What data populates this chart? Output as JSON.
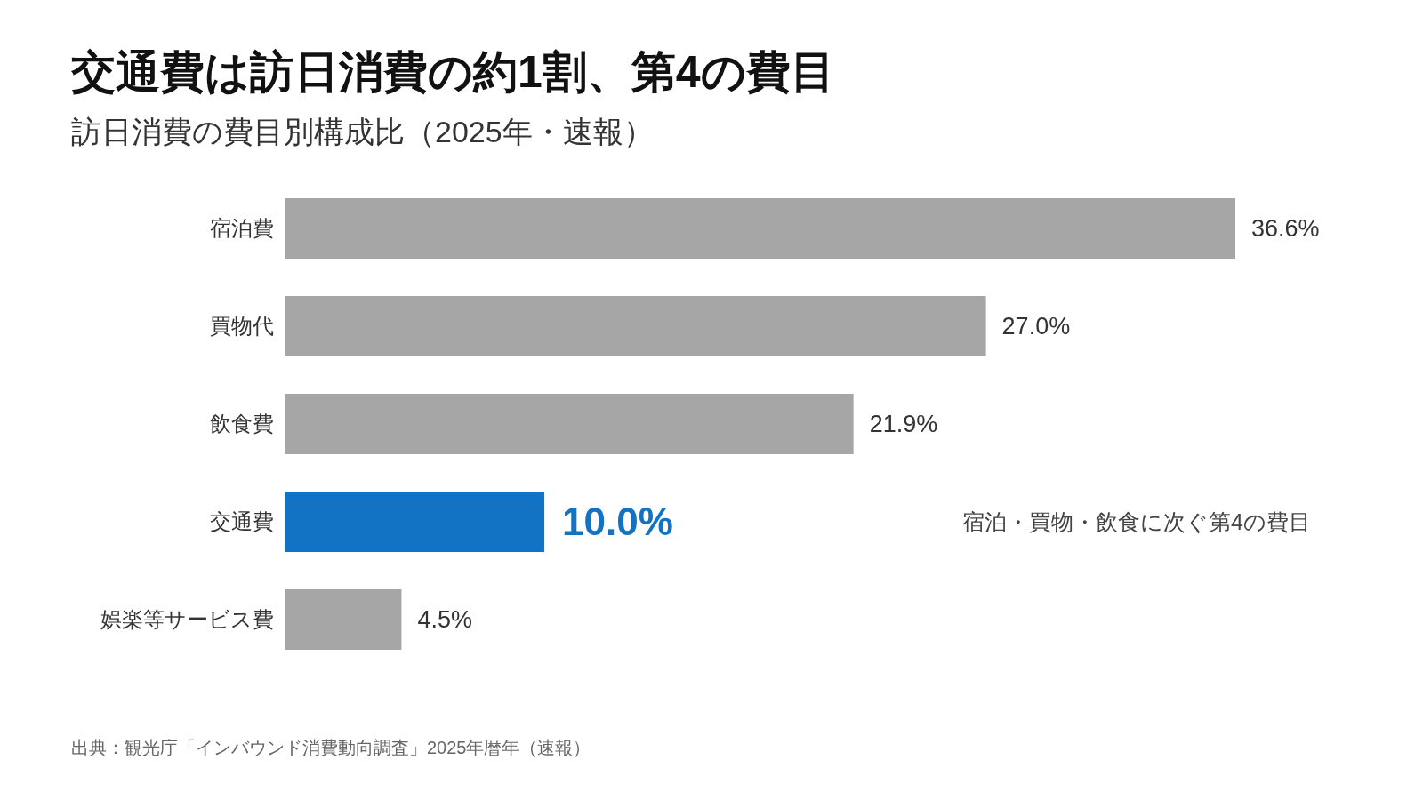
{
  "chart_data": {
    "type": "bar",
    "orientation": "horizontal",
    "title": "交通費は訪日消費の約1割、第4の費目",
    "subtitle": "訪日消費の費目別構成比（2025年・速報）",
    "categories": [
      "宿泊費",
      "買物代",
      "飲食費",
      "交通費",
      "娯楽等サービス費"
    ],
    "values": [
      36.6,
      27.0,
      21.9,
      10.0,
      4.5
    ],
    "value_labels": [
      "36.6%",
      "27.0%",
      "21.9%",
      "10.0%",
      "4.5%"
    ],
    "colors": [
      "#a6a6a6",
      "#a6a6a6",
      "#a6a6a6",
      "#1273c4",
      "#a6a6a6"
    ],
    "annotations": [
      "宿泊・買物・飲食に次ぐ第4の費目",
      "出典：観光庁「インバウンド消費動向調査」2025年暦年（速報）"
    ]
  }
}
